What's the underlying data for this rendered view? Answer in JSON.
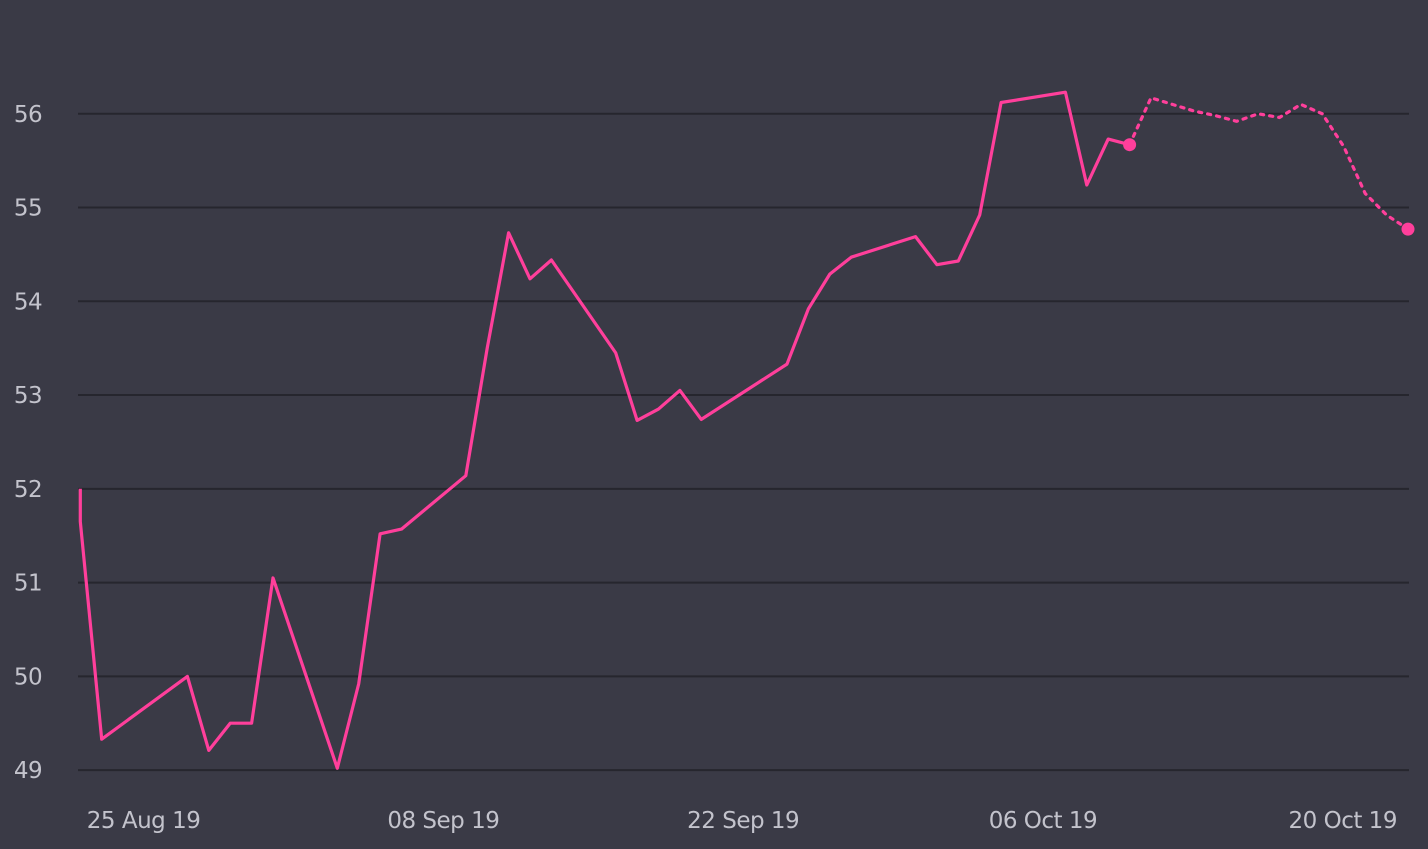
{
  "chart_data": {
    "type": "line",
    "title": "",
    "xlabel": "",
    "ylabel": "",
    "x_range": [
      "2019-08-21",
      "2019-10-23"
    ],
    "ylim": [
      48.98,
      57.0
    ],
    "y_ticks": [
      49,
      50,
      51,
      52,
      53,
      54,
      55,
      56
    ],
    "x_ticks": [
      {
        "date": "2019-08-25",
        "label": "25 Aug 19"
      },
      {
        "date": "2019-09-08",
        "label": "08 Sep 19"
      },
      {
        "date": "2019-09-22",
        "label": "22 Sep 19"
      },
      {
        "date": "2019-10-06",
        "label": "06 Oct 19"
      },
      {
        "date": "2019-10-20",
        "label": "20 Oct 19"
      }
    ],
    "grid": true,
    "legend": "none",
    "colors": {
      "background": "#3a3a46",
      "grid": "#26262e",
      "line": "#ff3f9b",
      "text": "#c3c3cc"
    },
    "series": [
      {
        "style": "solid",
        "end_marker": true,
        "points": [
          {
            "x": "2019-08-22",
            "y": 52.0
          },
          {
            "x": "2019-08-22",
            "y": 51.65
          },
          {
            "x": "2019-08-23",
            "y": 49.33
          },
          {
            "x": "2019-08-27",
            "y": 50.0
          },
          {
            "x": "2019-08-28",
            "y": 49.21
          },
          {
            "x": "2019-08-29",
            "y": 49.5
          },
          {
            "x": "2019-08-30",
            "y": 49.5
          },
          {
            "x": "2019-08-31",
            "y": 51.05
          },
          {
            "x": "2019-09-03",
            "y": 49.02
          },
          {
            "x": "2019-09-04",
            "y": 49.92
          },
          {
            "x": "2019-09-05",
            "y": 51.52
          },
          {
            "x": "2019-09-06",
            "y": 51.57
          },
          {
            "x": "2019-09-09",
            "y": 52.14
          },
          {
            "x": "2019-09-10",
            "y": 53.5
          },
          {
            "x": "2019-09-11",
            "y": 54.73
          },
          {
            "x": "2019-09-12",
            "y": 54.24
          },
          {
            "x": "2019-09-13",
            "y": 54.44
          },
          {
            "x": "2019-09-16",
            "y": 53.45
          },
          {
            "x": "2019-09-17",
            "y": 52.73
          },
          {
            "x": "2019-09-18",
            "y": 52.85
          },
          {
            "x": "2019-09-19",
            "y": 53.05
          },
          {
            "x": "2019-09-20",
            "y": 52.74
          },
          {
            "x": "2019-09-24",
            "y": 53.33
          },
          {
            "x": "2019-09-25",
            "y": 53.92
          },
          {
            "x": "2019-09-26",
            "y": 54.29
          },
          {
            "x": "2019-09-27",
            "y": 54.47
          },
          {
            "x": "2019-09-30",
            "y": 54.69
          },
          {
            "x": "2019-10-01",
            "y": 54.39
          },
          {
            "x": "2019-10-02",
            "y": 54.43
          },
          {
            "x": "2019-10-03",
            "y": 54.92
          },
          {
            "x": "2019-10-04",
            "y": 56.12
          },
          {
            "x": "2019-10-07",
            "y": 56.23
          },
          {
            "x": "2019-10-08",
            "y": 55.24
          },
          {
            "x": "2019-10-09",
            "y": 55.73
          },
          {
            "x": "2019-10-10",
            "y": 55.67
          }
        ]
      },
      {
        "style": "dotted",
        "end_marker": true,
        "points": [
          {
            "x": "2019-10-10",
            "y": 55.67
          },
          {
            "x": "2019-10-11",
            "y": 56.17
          },
          {
            "x": "2019-10-12",
            "y": 56.1
          },
          {
            "x": "2019-10-13",
            "y": 56.03
          },
          {
            "x": "2019-10-14",
            "y": 55.98
          },
          {
            "x": "2019-10-15",
            "y": 55.92
          },
          {
            "x": "2019-10-16",
            "y": 56.0
          },
          {
            "x": "2019-10-17",
            "y": 55.96
          },
          {
            "x": "2019-10-18",
            "y": 56.1
          },
          {
            "x": "2019-10-19",
            "y": 56.0
          },
          {
            "x": "2019-10-20",
            "y": 55.65
          },
          {
            "x": "2019-10-21",
            "y": 55.15
          },
          {
            "x": "2019-10-22",
            "y": 54.92
          },
          {
            "x": "2019-10-23",
            "y": 54.77
          }
        ]
      }
    ]
  }
}
